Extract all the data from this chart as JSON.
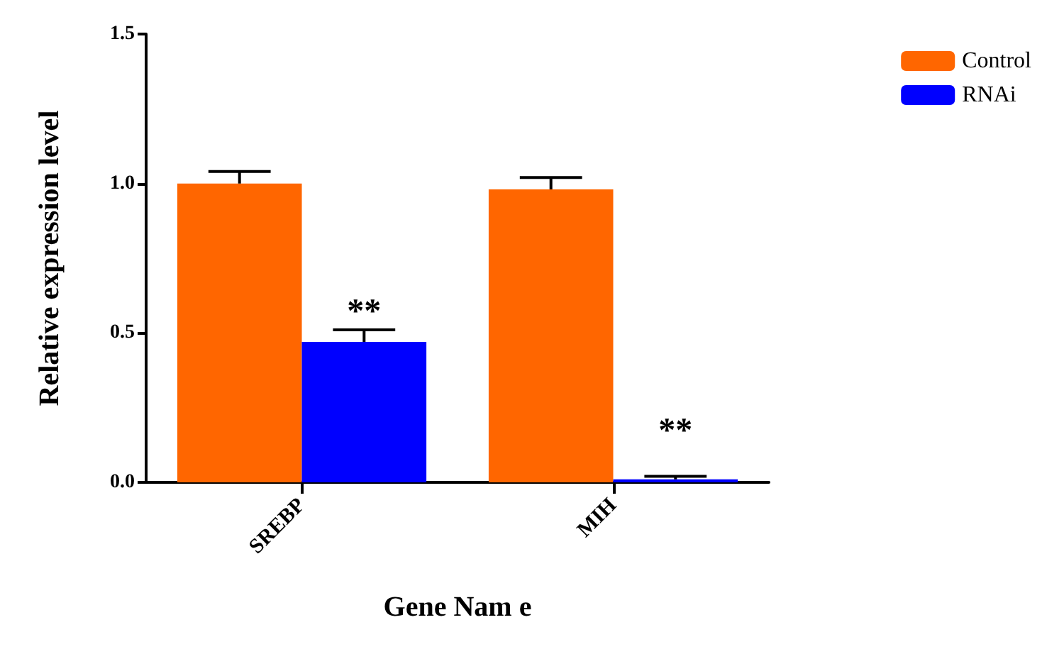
{
  "chart_data": {
    "type": "bar",
    "xlabel": "Gene Nam e",
    "ylabel": "Relative expression level",
    "categories": [
      "SREBP",
      "MIH"
    ],
    "series": [
      {
        "name": "Control",
        "color": "#ff6600",
        "values": [
          1.0,
          0.98
        ],
        "errors": [
          [
            1.0,
            1.04
          ],
          [
            0.98,
            1.02
          ]
        ]
      },
      {
        "name": "RNAi",
        "color": "#0000ff",
        "values": [
          0.47,
          0.01
        ],
        "errors": [
          [
            0.47,
            0.51
          ],
          [
            0.01,
            0.02
          ]
        ]
      }
    ],
    "ylim": [
      0,
      1.5
    ],
    "yticks": [
      {
        "value": 0,
        "label": "0.0"
      },
      {
        "value": 0.5,
        "label": "0.5"
      },
      {
        "value": 1,
        "label": "1.0"
      },
      {
        "value": 1.5,
        "label": "1.5"
      }
    ],
    "annotations": [
      {
        "text": "**",
        "x": "SREBP",
        "y": 0.57
      },
      {
        "text": "**",
        "x": "MIH",
        "y": 0.17
      }
    ],
    "grid": false,
    "legend": "top right"
  }
}
